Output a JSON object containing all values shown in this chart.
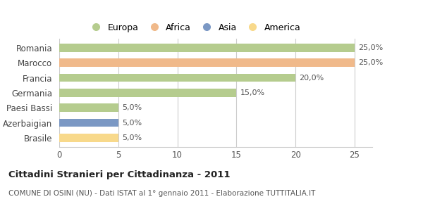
{
  "categories": [
    "Brasile",
    "Azerbaigian",
    "Paesi Bassi",
    "Germania",
    "Francia",
    "Marocco",
    "Romania"
  ],
  "values": [
    5,
    5,
    5,
    15,
    20,
    25,
    25
  ],
  "bar_colors": [
    "#f8d98b",
    "#7b98c4",
    "#b5cc8e",
    "#b5cc8e",
    "#b5cc8e",
    "#f0b98a",
    "#b5cc8e"
  ],
  "value_labels": [
    "5,0%",
    "5,0%",
    "5,0%",
    "15,0%",
    "20,0%",
    "25,0%",
    "25,0%"
  ],
  "xlim": [
    0,
    26.5
  ],
  "xticks": [
    0,
    5,
    10,
    15,
    20,
    25
  ],
  "title": "Cittadini Stranieri per Cittadinanza - 2011",
  "subtitle": "COMUNE DI OSINI (NU) - Dati ISTAT al 1° gennaio 2011 - Elaborazione TUTTITALIA.IT",
  "legend_labels": [
    "Europa",
    "Africa",
    "Asia",
    "America"
  ],
  "legend_colors": [
    "#b5cc8e",
    "#f0b98a",
    "#7b98c4",
    "#f8d98b"
  ],
  "background_color": "#ffffff",
  "grid_color": "#cccccc"
}
